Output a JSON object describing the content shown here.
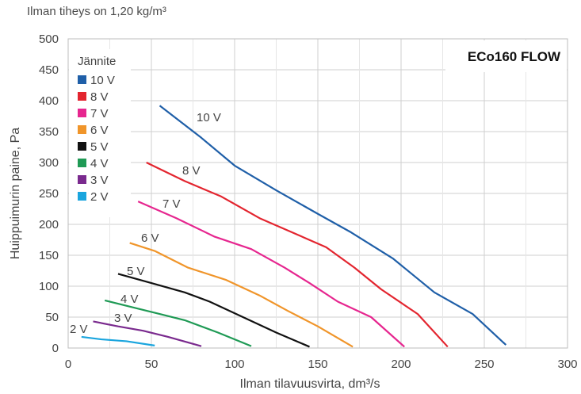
{
  "note": "Ilman tiheys on 1,20 kg/m³",
  "chart_data": {
    "type": "line",
    "title": "ECo160 FLOW",
    "xlabel": "Ilman tilavuusvirta, dm³/s",
    "ylabel": "Huippuimurin paine, Pa",
    "xlim": [
      0,
      300
    ],
    "ylim": [
      0,
      500
    ],
    "xticks": [
      "0",
      "50",
      "100",
      "150",
      "200",
      "250",
      "300"
    ],
    "yticks": [
      "0",
      "50",
      "100",
      "150",
      "200",
      "250",
      "300",
      "350",
      "400",
      "450",
      "500"
    ],
    "grid": true,
    "legend_title": "Jännite",
    "legend_position": "top-left",
    "series": [
      {
        "name": "10 V",
        "color": "#1f5fa8",
        "label": "10 V",
        "x": [
          55,
          80,
          100,
          125,
          150,
          170,
          195,
          220,
          243,
          263
        ],
        "y": [
          392,
          340,
          295,
          255,
          217,
          187,
          145,
          90,
          55,
          5
        ]
      },
      {
        "name": "8 V",
        "color": "#e3252f",
        "label": "8 V",
        "x": [
          47,
          70,
          92,
          115,
          138,
          155,
          172,
          188,
          210,
          228
        ],
        "y": [
          300,
          270,
          245,
          210,
          183,
          163,
          130,
          95,
          55,
          2
        ]
      },
      {
        "name": "7 V",
        "color": "#e6268f",
        "label": "7 V",
        "x": [
          42,
          65,
          88,
          110,
          130,
          145,
          162,
          182,
          202
        ],
        "y": [
          237,
          210,
          180,
          160,
          130,
          105,
          75,
          50,
          2
        ]
      },
      {
        "name": "6 V",
        "color": "#f0952a",
        "label": "6 V",
        "x": [
          37,
          52,
          72,
          95,
          115,
          132,
          150,
          171
        ],
        "y": [
          170,
          157,
          130,
          110,
          85,
          60,
          35,
          2
        ]
      },
      {
        "name": "5 V",
        "color": "#111111",
        "label": "5 V",
        "x": [
          30,
          50,
          70,
          85,
          105,
          125,
          145
        ],
        "y": [
          120,
          105,
          90,
          75,
          50,
          25,
          2
        ]
      },
      {
        "name": "4 V",
        "color": "#1f9a55",
        "label": "4 V",
        "x": [
          22,
          40,
          55,
          70,
          90,
          110
        ],
        "y": [
          77,
          65,
          55,
          45,
          25,
          3
        ]
      },
      {
        "name": "3 V",
        "color": "#7a2a8e",
        "label": "3 V",
        "x": [
          15,
          30,
          45,
          60,
          80
        ],
        "y": [
          43,
          35,
          28,
          18,
          3
        ]
      },
      {
        "name": "2 V",
        "color": "#1aa5de",
        "label": "2 V",
        "x": [
          8,
          20,
          35,
          52
        ],
        "y": [
          18,
          14,
          11,
          4
        ]
      }
    ]
  }
}
